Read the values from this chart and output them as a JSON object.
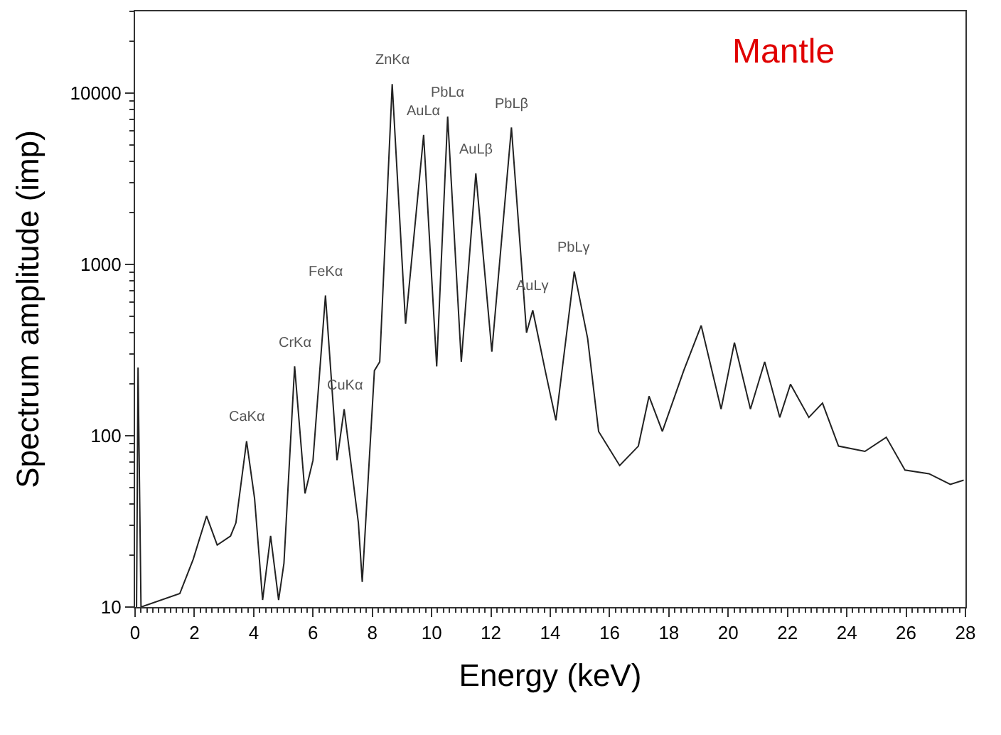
{
  "chart_data": {
    "type": "line",
    "xlabel": "Energy (keV)",
    "ylabel": "Spectrum amplitude (imp)",
    "log": "y",
    "marker": "none",
    "line_style": "solid",
    "xlim": [
      0,
      28
    ],
    "xticks": [
      0,
      2,
      4,
      6,
      8,
      10,
      12,
      14,
      16,
      18,
      20,
      22,
      24,
      26,
      28
    ],
    "ylim": [
      10,
      30000
    ],
    "yticks": [
      10,
      100,
      1000,
      10000
    ],
    "series": [
      {
        "color": "#222222",
        "x": [
          0.05,
          0.1,
          0.2,
          1.51,
          1.96,
          2.41,
          2.77,
          3.22,
          3.4,
          3.76,
          4.03,
          4.3,
          4.57,
          4.84,
          5.02,
          5.38,
          5.73,
          6.0,
          6.42,
          6.81,
          7.05,
          7.53,
          7.66,
          8.07,
          8.25,
          8.67,
          9.12,
          9.73,
          10.17,
          10.54,
          11.0,
          11.49,
          12.03,
          12.69,
          13.2,
          13.41,
          13.83,
          14.19,
          14.81,
          15.26,
          15.63,
          16.34,
          16.97,
          17.33,
          17.78,
          18.5,
          19.09,
          19.76,
          20.21,
          20.75,
          21.23,
          21.74,
          22.1,
          22.72,
          23.18,
          23.72,
          24.61,
          25.33,
          25.96,
          26.77,
          27.49,
          27.94
        ],
        "values": [
          10,
          250,
          10,
          12,
          19,
          34,
          23,
          26,
          31,
          93,
          43,
          11,
          26,
          11,
          18,
          254,
          46,
          72,
          660,
          72,
          143,
          31,
          14,
          240,
          270,
          11300,
          450,
          5700,
          254,
          7300,
          270,
          3400,
          310,
          6300,
          400,
          540,
          240,
          123,
          910,
          370,
          106,
          67,
          87,
          170,
          106,
          240,
          440,
          143,
          350,
          143,
          270,
          128,
          200,
          128,
          155,
          87,
          81,
          98,
          63,
          60,
          52,
          55
        ]
      }
    ],
    "annotations": [
      "Mantle",
      {
        "text": "CaKα",
        "x": 3.76,
        "y": 93
      },
      {
        "text": "CrKα",
        "x": 5.38,
        "y": 254
      },
      {
        "text": "FeKα",
        "x": 6.42,
        "y": 660
      },
      {
        "text": "CuKα",
        "x": 7.05,
        "y": 143
      },
      {
        "text": "ZnKα",
        "x": 8.67,
        "y": 11300
      },
      {
        "text": "AuLα",
        "x": 9.73,
        "y": 5700
      },
      {
        "text": "PbLα",
        "x": 10.54,
        "y": 7300
      },
      {
        "text": "AuLβ",
        "x": 11.49,
        "y": 3400
      },
      {
        "text": "PbLβ",
        "x": 12.69,
        "y": 6300
      },
      {
        "text": "AuLγ",
        "x": 13.41,
        "y": 540
      },
      {
        "text": "PbLγ",
        "x": 14.81,
        "y": 910
      }
    ]
  }
}
